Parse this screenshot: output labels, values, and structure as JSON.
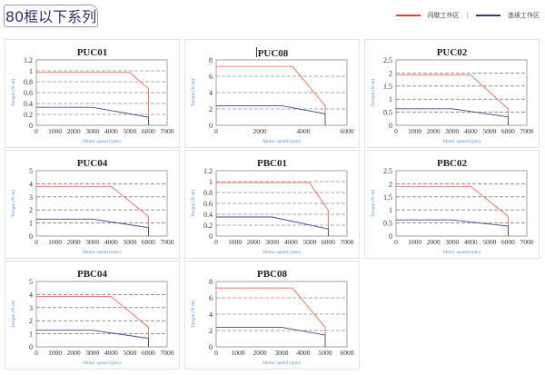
{
  "header": {
    "title": "80框以下系列"
  },
  "legend": [
    {
      "label": "间歇工作区",
      "color": "#e8412a"
    },
    {
      "label": "连续工作区",
      "color": "#2b3a7a"
    }
  ],
  "colors": {
    "peak_line": "#ef6b5c",
    "continuous_line": "#3d4a8e",
    "axis_label": "#5b8fd0"
  },
  "chart_data": [
    {
      "type": "line",
      "title": "PUC01",
      "xlabel": "Motor speed (rpm)",
      "ylabel": "Torque (N·m)",
      "xlim": [
        0,
        7000
      ],
      "xticks": [
        0,
        1000,
        2000,
        3000,
        4000,
        5000,
        6000,
        7000
      ],
      "ylim": [
        0,
        1.2
      ],
      "yticks": [
        0,
        0.2,
        0.4,
        0.6,
        0.8,
        1,
        1.2
      ],
      "grid": "dashed-horizontal",
      "series": [
        {
          "name": "间歇工作区",
          "points": [
            [
              0,
              0.97
            ],
            [
              5000,
              0.97
            ],
            [
              6000,
              0.67
            ],
            [
              6000,
              0
            ]
          ]
        },
        {
          "name": "连续工作区",
          "points": [
            [
              0,
              0.33
            ],
            [
              3000,
              0.33
            ],
            [
              6000,
              0.15
            ],
            [
              6000,
              0
            ]
          ]
        }
      ]
    },
    {
      "type": "line",
      "title": "PUC08",
      "xlabel": "Motor speed (rpm)",
      "ylabel": "Torque (N·m)",
      "xlim": [
        0,
        6000
      ],
      "xticks": [
        0,
        2000,
        4000,
        6000
      ],
      "ylim": [
        0,
        8
      ],
      "yticks": [
        0,
        2,
        4,
        6,
        8
      ],
      "grid": "dashed-horizontal",
      "series": [
        {
          "name": "间歇工作区",
          "points": [
            [
              0,
              7.2
            ],
            [
              3500,
              7.2
            ],
            [
              5000,
              2.4
            ],
            [
              5000,
              0
            ]
          ]
        },
        {
          "name": "连续工作区",
          "points": [
            [
              0,
              2.4
            ],
            [
              3000,
              2.4
            ],
            [
              5000,
              1.4
            ],
            [
              5000,
              0
            ]
          ]
        }
      ]
    },
    {
      "type": "line",
      "title": "PUC02",
      "xlabel": "Motor speed (rpm)",
      "ylabel": "Torque (N·m)",
      "xlim": [
        0,
        7000
      ],
      "xticks": [
        0,
        1000,
        2000,
        3000,
        4000,
        5000,
        6000,
        7000
      ],
      "ylim": [
        0,
        2.5
      ],
      "yticks": [
        0,
        0.5,
        1,
        1.5,
        2,
        2.5
      ],
      "grid": "dashed-horizontal",
      "series": [
        {
          "name": "间歇工作区",
          "points": [
            [
              0,
              1.92
            ],
            [
              4000,
              1.92
            ],
            [
              6000,
              0.63
            ],
            [
              6000,
              0
            ]
          ]
        },
        {
          "name": "连续工作区",
          "points": [
            [
              0,
              0.63
            ],
            [
              3000,
              0.63
            ],
            [
              6000,
              0.32
            ],
            [
              6000,
              0
            ]
          ]
        }
      ]
    },
    {
      "type": "line",
      "title": "PUC04",
      "xlabel": "Motor speed (rpm)",
      "ylabel": "Torque (N·m)",
      "xlim": [
        0,
        7000
      ],
      "xticks": [
        0,
        1000,
        2000,
        3000,
        4000,
        5000,
        6000,
        7000
      ],
      "ylim": [
        0,
        5
      ],
      "yticks": [
        0,
        1,
        2,
        3,
        4,
        5
      ],
      "grid": "dashed-horizontal",
      "series": [
        {
          "name": "间歇工作区",
          "points": [
            [
              0,
              3.8
            ],
            [
              4000,
              3.8
            ],
            [
              6000,
              1.5
            ],
            [
              6000,
              0
            ]
          ]
        },
        {
          "name": "连续工作区",
          "points": [
            [
              0,
              1.3
            ],
            [
              3000,
              1.3
            ],
            [
              6000,
              0.65
            ],
            [
              6000,
              0
            ]
          ]
        }
      ]
    },
    {
      "type": "line",
      "title": "PBC01",
      "xlabel": "Motor speed (rpm)",
      "ylabel": "Torque (N·m)",
      "xlim": [
        0,
        7000
      ],
      "xticks": [
        0,
        1000,
        2000,
        3000,
        4000,
        5000,
        6000,
        7000
      ],
      "ylim": [
        0,
        1.2
      ],
      "yticks": [
        0,
        0.2,
        0.4,
        0.6,
        0.8,
        1,
        1.2
      ],
      "grid": "dashed-horizontal",
      "series": [
        {
          "name": "间歇工作区",
          "points": [
            [
              0,
              0.98
            ],
            [
              5000,
              0.98
            ],
            [
              6000,
              0.47
            ],
            [
              6000,
              0
            ]
          ]
        },
        {
          "name": "连续工作区",
          "points": [
            [
              0,
              0.35
            ],
            [
              3000,
              0.35
            ],
            [
              6000,
              0.13
            ],
            [
              6000,
              0
            ]
          ]
        }
      ]
    },
    {
      "type": "line",
      "title": "PBC02",
      "xlabel": "Motor speed (rpm)",
      "ylabel": "Torque (N·m)",
      "xlim": [
        0,
        7000
      ],
      "xticks": [
        0,
        1000,
        2000,
        3000,
        4000,
        5000,
        6000,
        7000
      ],
      "ylim": [
        0,
        2.5
      ],
      "yticks": [
        0,
        0.5,
        1,
        1.5,
        2,
        2.5
      ],
      "grid": "dashed-horizontal",
      "series": [
        {
          "name": "间歇工作区",
          "points": [
            [
              0,
              1.9
            ],
            [
              4000,
              1.9
            ],
            [
              6000,
              0.75
            ],
            [
              6000,
              0
            ]
          ]
        },
        {
          "name": "连续工作区",
          "points": [
            [
              0,
              0.62
            ],
            [
              3000,
              0.62
            ],
            [
              6000,
              0.38
            ],
            [
              6000,
              0
            ]
          ]
        }
      ]
    },
    {
      "type": "line",
      "title": "PBC04",
      "xlabel": "Motor speed (rpm)",
      "ylabel": "Torque (N·m)",
      "xlim": [
        0,
        7000
      ],
      "xticks": [
        0,
        1000,
        2000,
        3000,
        4000,
        5000,
        6000,
        7000
      ],
      "ylim": [
        0,
        5
      ],
      "yticks": [
        0,
        1,
        2,
        3,
        4,
        5
      ],
      "grid": "dashed-horizontal",
      "series": [
        {
          "name": "间歇工作区",
          "points": [
            [
              0,
              3.85
            ],
            [
              4000,
              3.85
            ],
            [
              6000,
              1.5
            ],
            [
              6000,
              0
            ]
          ]
        },
        {
          "name": "连续工作区",
          "points": [
            [
              0,
              1.27
            ],
            [
              3000,
              1.27
            ],
            [
              6000,
              0.65
            ],
            [
              6000,
              0
            ]
          ]
        }
      ]
    },
    {
      "type": "line",
      "title": "PBC08",
      "xlabel": "Motor speed (rpm)",
      "ylabel": "Torque (N·m)",
      "xlim": [
        0,
        6000
      ],
      "xticks": [
        0,
        1000,
        2000,
        3000,
        4000,
        5000,
        6000
      ],
      "ylim": [
        0,
        8
      ],
      "yticks": [
        0,
        2,
        4,
        6,
        8
      ],
      "grid": "dashed-horizontal",
      "series": [
        {
          "name": "间歇工作区",
          "points": [
            [
              0,
              7.2
            ],
            [
              3500,
              7.2
            ],
            [
              5000,
              2.4
            ],
            [
              5000,
              0
            ]
          ]
        },
        {
          "name": "连续工作区",
          "points": [
            [
              0,
              2.4
            ],
            [
              3000,
              2.4
            ],
            [
              5000,
              1.45
            ],
            [
              5000,
              0
            ]
          ]
        }
      ]
    }
  ]
}
